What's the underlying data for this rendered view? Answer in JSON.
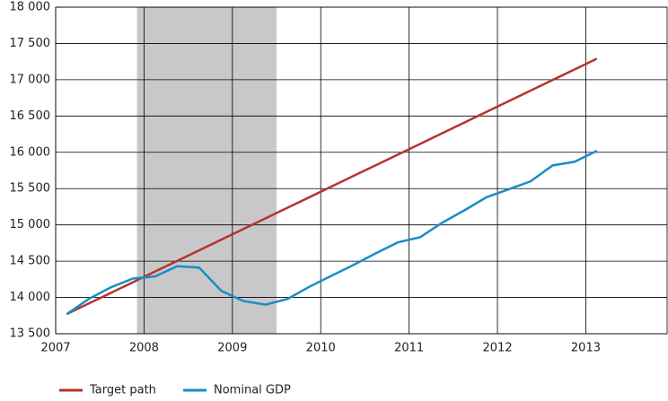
{
  "chart_data": {
    "type": "line",
    "x": [
      2007.125,
      2007.375,
      2007.625,
      2007.875,
      2008.125,
      2008.375,
      2008.625,
      2008.875,
      2009.125,
      2009.375,
      2009.625,
      2009.875,
      2010.125,
      2010.375,
      2010.625,
      2010.875,
      2011.125,
      2011.375,
      2011.625,
      2011.875,
      2012.125,
      2012.375,
      2012.625,
      2012.875,
      2013.125
    ],
    "series": [
      {
        "name": "Target path",
        "color": "#b5342f",
        "values": [
          13770,
          13917,
          14063,
          14210,
          14357,
          14503,
          14650,
          14797,
          14943,
          15090,
          15237,
          15383,
          15530,
          15677,
          15823,
          15970,
          16117,
          16263,
          16410,
          16557,
          16703,
          16850,
          16997,
          17143,
          17290
        ]
      },
      {
        "name": "Nominal GDP",
        "color": "#1a8cc7",
        "values": [
          13770,
          13980,
          14140,
          14260,
          14290,
          14430,
          14410,
          14090,
          13950,
          13900,
          13980,
          14150,
          14300,
          14450,
          14610,
          14760,
          14830,
          15030,
          15200,
          15380,
          15490,
          15600,
          15820,
          15870,
          16020
        ]
      }
    ],
    "shaded_region": [
      2007.92,
      2009.5
    ],
    "shaded_color": "#c8c8c8",
    "xlim": [
      2007,
      2013.92
    ],
    "xticks": [
      2007,
      2008,
      2009,
      2010,
      2011,
      2012,
      2013
    ],
    "ylim": [
      13500,
      18000
    ],
    "yticks": [
      {
        "value": 13500,
        "label": "13 500"
      },
      {
        "value": 14000,
        "label": "14 000"
      },
      {
        "value": 14500,
        "label": "14 500"
      },
      {
        "value": 15000,
        "label": "15 000"
      },
      {
        "value": 15500,
        "label": "15 500"
      },
      {
        "value": 16000,
        "label": "16 000"
      },
      {
        "value": 16500,
        "label": "16 500"
      },
      {
        "value": 17000,
        "label": "17 000"
      },
      {
        "value": 17500,
        "label": "17 500"
      },
      {
        "value": 18000,
        "label": "18 000"
      }
    ],
    "grid": true,
    "legend": "bottom"
  }
}
